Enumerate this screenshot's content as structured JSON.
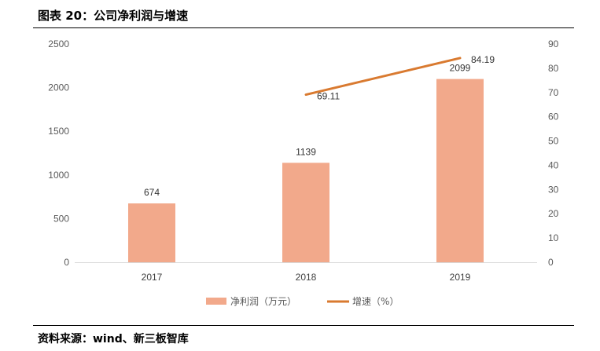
{
  "figure": {
    "title": "图表 20：公司净利润与增速",
    "source": "资料来源：wind、新三板智库"
  },
  "colors": {
    "bar": "#F2A98B",
    "line": "#D97A30",
    "axis": "#D9D9D9",
    "text": "#595959"
  },
  "chart_data": {
    "type": "bar",
    "categories": [
      "2017",
      "2018",
      "2019"
    ],
    "series": [
      {
        "name": "净利润（万元）",
        "type": "bar",
        "axis": "left",
        "values": [
          674,
          1139,
          2099
        ],
        "labels": [
          "674",
          "1139",
          "2099"
        ]
      },
      {
        "name": "增速（%）",
        "type": "line",
        "axis": "right",
        "values": [
          null,
          69.11,
          84.19
        ],
        "labels": [
          "",
          "69.11",
          "84.19"
        ]
      }
    ],
    "y_left": {
      "min": 0,
      "max": 2500,
      "ticks": [
        "0",
        "500",
        "1000",
        "1500",
        "2000",
        "2500"
      ]
    },
    "y_right": {
      "min": 0,
      "max": 90,
      "ticks": [
        "0",
        "10",
        "20",
        "30",
        "40",
        "50",
        "60",
        "70",
        "80",
        "90"
      ]
    },
    "grid": false,
    "legend_position": "bottom"
  }
}
